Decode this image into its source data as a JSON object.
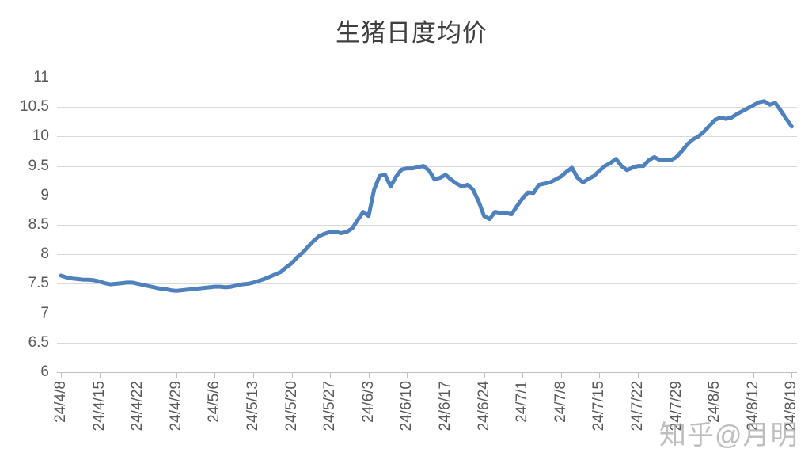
{
  "title": "生猪日度均价",
  "watermark": "知乎@月明",
  "colors": {
    "line": "#4f81bd",
    "gridline": "#d9d9d9",
    "axis": "#bfbfbf",
    "tick_label": "#595959",
    "title_text": "#3f3f3f",
    "watermark_text": "#a6a6a6",
    "background": "#ffffff"
  },
  "chart_data": {
    "type": "line",
    "title": "生猪日度均价",
    "xlabel": "",
    "ylabel": "",
    "ylim": [
      6,
      11
    ],
    "grid": "horizontal",
    "legend": false,
    "y_ticks": [
      6,
      6.5,
      7,
      7.5,
      8,
      8.5,
      9,
      9.5,
      10,
      10.5,
      11
    ],
    "y_tick_labels": [
      "6",
      "6.5",
      "7",
      "7.5",
      "8",
      "8.5",
      "9",
      "9.5",
      "10",
      "10.5",
      "11"
    ],
    "x_tick_labels": [
      "24/4/8",
      "24/4/15",
      "24/4/22",
      "24/4/29",
      "24/5/6",
      "24/5/13",
      "24/5/20",
      "24/5/27",
      "24/6/3",
      "24/6/10",
      "24/6/17",
      "24/6/24",
      "24/7/1",
      "24/7/8",
      "24/7/15",
      "24/7/22",
      "24/7/29",
      "24/8/5",
      "24/8/12",
      "24/8/19"
    ],
    "x_start": "24/4/8",
    "x_end": "24/8/19",
    "frequency": "daily",
    "series": [
      {
        "name": "生猪日度均价",
        "values": [
          7.64,
          7.61,
          7.59,
          7.58,
          7.57,
          7.57,
          7.56,
          7.54,
          7.51,
          7.49,
          7.5,
          7.51,
          7.52,
          7.52,
          7.5,
          7.48,
          7.46,
          7.44,
          7.42,
          7.41,
          7.39,
          7.38,
          7.39,
          7.4,
          7.41,
          7.42,
          7.43,
          7.44,
          7.45,
          7.45,
          7.44,
          7.45,
          7.47,
          7.49,
          7.5,
          7.52,
          7.55,
          7.58,
          7.62,
          7.66,
          7.7,
          7.78,
          7.85,
          7.95,
          8.03,
          8.13,
          8.23,
          8.31,
          8.35,
          8.38,
          8.38,
          8.36,
          8.38,
          8.44,
          8.58,
          8.72,
          8.65,
          9.1,
          9.33,
          9.35,
          9.15,
          9.32,
          9.44,
          9.46,
          9.46,
          9.48,
          9.5,
          9.42,
          9.27,
          9.3,
          9.35,
          9.27,
          9.2,
          9.15,
          9.18,
          9.1,
          8.9,
          8.65,
          8.6,
          8.72,
          8.7,
          8.7,
          8.68,
          8.82,
          8.95,
          9.05,
          9.04,
          9.18,
          9.2,
          9.22,
          9.27,
          9.32,
          9.4,
          9.47,
          9.3,
          9.22,
          9.28,
          9.33,
          9.42,
          9.5,
          9.55,
          9.62,
          9.5,
          9.43,
          9.47,
          9.5,
          9.5,
          9.6,
          9.65,
          9.6,
          9.6,
          9.6,
          9.65,
          9.75,
          9.87,
          9.95,
          10.0,
          10.08,
          10.18,
          10.28,
          10.32,
          10.3,
          10.32,
          10.38,
          10.43,
          10.48,
          10.53,
          10.58,
          10.6,
          10.54,
          10.57,
          10.44,
          10.3,
          10.17
        ]
      }
    ]
  }
}
